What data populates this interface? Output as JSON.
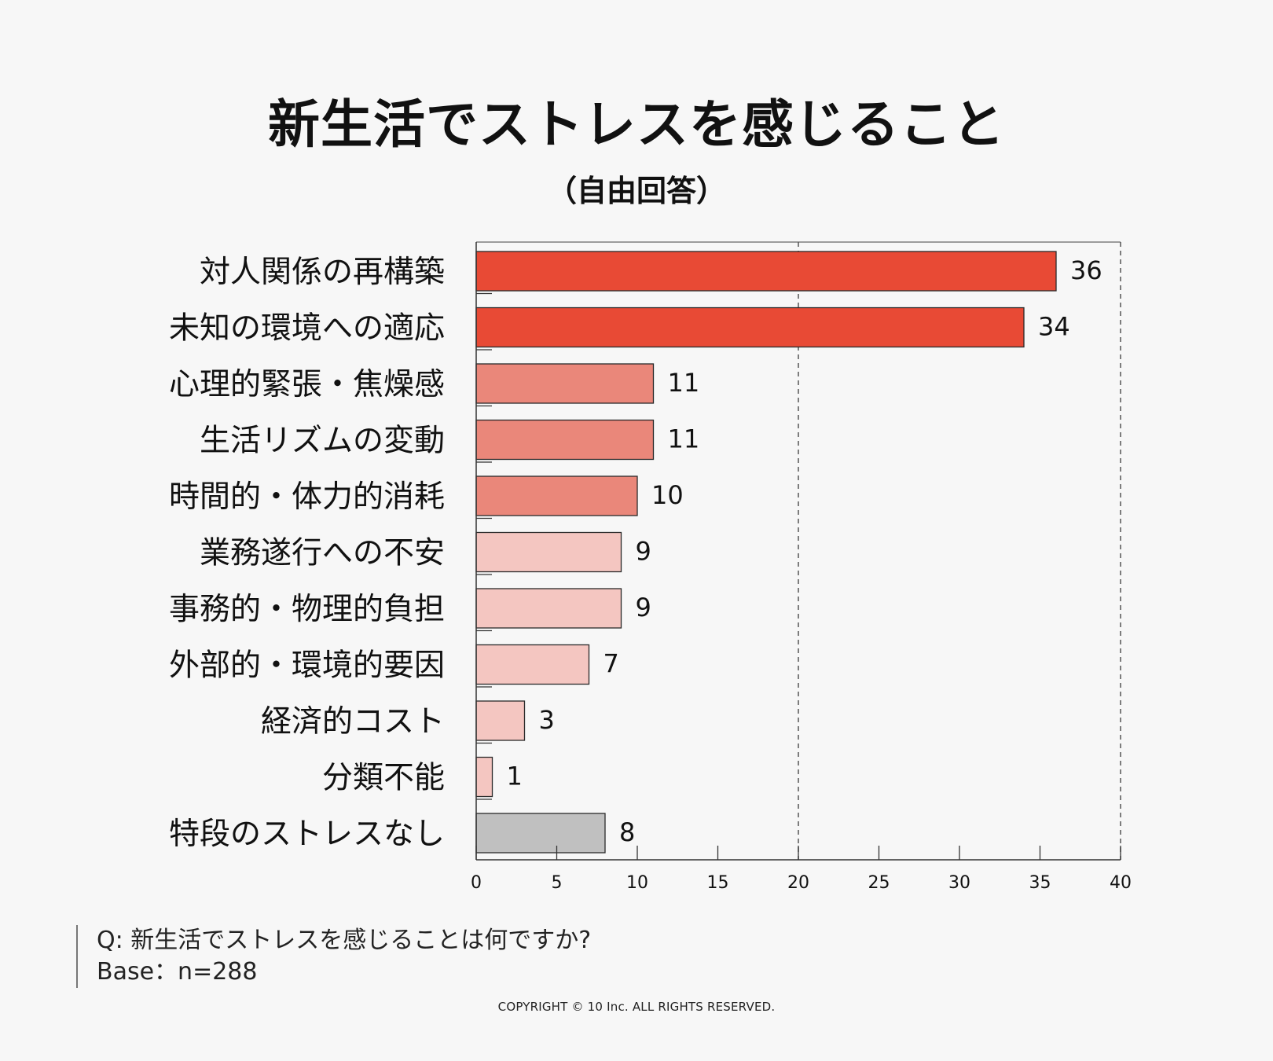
{
  "page": {
    "title": "新生活でストレスを感じること",
    "subtitle": "（自由回答）",
    "question": "Q: 新生活でストレスを感じることは何ですか?",
    "base": "Base：n=288",
    "copyright": "COPYRIGHT © 10 Inc. ALL RIGHTS RESERVED."
  },
  "chart_data": {
    "type": "bar",
    "orientation": "horizontal",
    "title": "新生活でストレスを感じること",
    "subtitle": "（自由回答）",
    "categories": [
      "対人関係の再構築",
      "未知の環境への適応",
      "心理的緊張・焦燥感",
      "生活リズムの変動",
      "時間的・体力的消耗",
      "業務遂行への不安",
      "事務的・物理的負担",
      "外部的・環境的要因",
      "経済的コスト",
      "分類不能",
      "特段のストレスなし"
    ],
    "values": [
      36,
      34,
      11,
      11,
      10,
      9,
      9,
      7,
      3,
      1,
      8
    ],
    "bar_colors": [
      "#e84a35",
      "#e84a35",
      "#ea877a",
      "#ea877a",
      "#ea877a",
      "#f4c6c1",
      "#f4c6c1",
      "#f4c6c1",
      "#f4c6c1",
      "#f4c6c1",
      "#c0c0c0"
    ],
    "xlim": [
      0,
      40
    ],
    "xticks": [
      0,
      5,
      10,
      15,
      20,
      25,
      30,
      35,
      40
    ],
    "reference_line": 20,
    "xlabel": "",
    "ylabel": ""
  }
}
